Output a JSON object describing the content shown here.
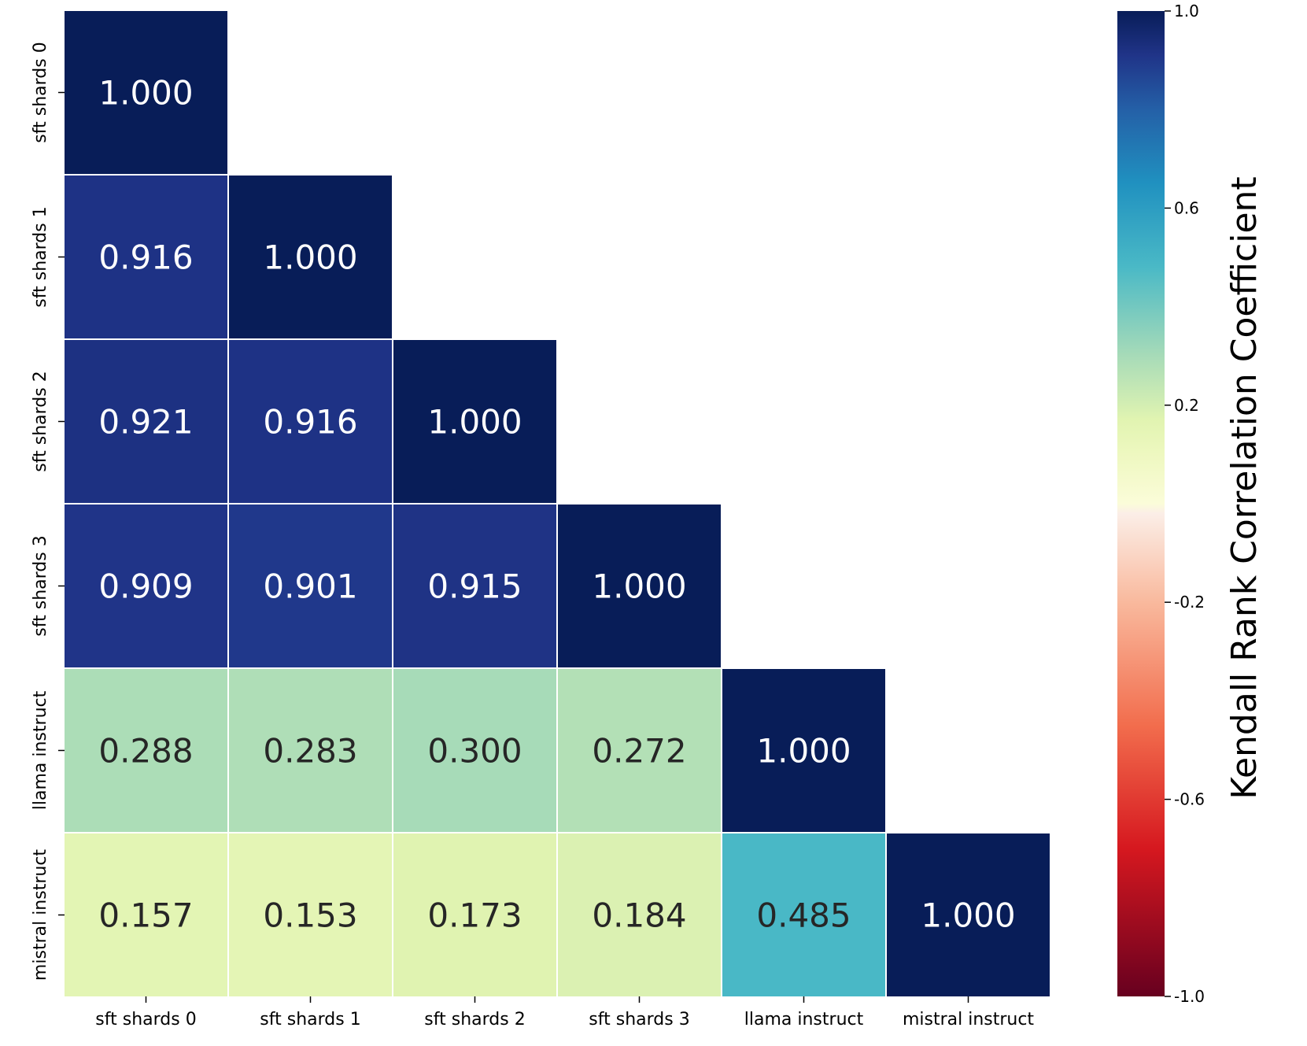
{
  "chart_data": {
    "type": "heatmap",
    "title": "",
    "xlabel": "",
    "ylabel": "",
    "categories": [
      "sft shards 0",
      "sft shards 1",
      "sft shards 2",
      "sft shards 3",
      "llama instruct",
      "mistral instruct"
    ],
    "values": [
      [
        1.0,
        null,
        null,
        null,
        null,
        null
      ],
      [
        0.916,
        1.0,
        null,
        null,
        null,
        null
      ],
      [
        0.921,
        0.916,
        1.0,
        null,
        null,
        null
      ],
      [
        0.909,
        0.901,
        0.915,
        1.0,
        null,
        null
      ],
      [
        0.288,
        0.283,
        0.3,
        0.272,
        1.0,
        null
      ],
      [
        0.157,
        0.153,
        0.173,
        0.184,
        0.485,
        1.0
      ]
    ],
    "mask": "upper-triangle",
    "colorbar": {
      "label": "Kendall Rank Correlation Coefficient",
      "range": [
        -1.0,
        1.0
      ],
      "ticks": [
        "1.0",
        "0.6",
        "0.2",
        "-0.2",
        "-0.6",
        "-1.0"
      ],
      "tick_values": [
        1.0,
        0.6,
        0.2,
        -0.2,
        -0.6,
        -1.0
      ],
      "stops": [
        {
          "v": -1.0,
          "color": "#67001f"
        },
        {
          "v": -0.7,
          "color": "#d6181f"
        },
        {
          "v": -0.45,
          "color": "#f26d4d"
        },
        {
          "v": -0.2,
          "color": "#f9b99d"
        },
        {
          "v": -0.02,
          "color": "#fbeee7"
        },
        {
          "v": 0.0,
          "color": "#fbfcd9"
        },
        {
          "v": 0.1,
          "color": "#eef8c0"
        },
        {
          "v": 0.17,
          "color": "#e1f4b1"
        },
        {
          "v": 0.3,
          "color": "#a7dbb8"
        },
        {
          "v": 0.48,
          "color": "#4ab9c6"
        },
        {
          "v": 0.65,
          "color": "#2091c0"
        },
        {
          "v": 0.8,
          "color": "#2460a7"
        },
        {
          "v": 0.91,
          "color": "#203488"
        },
        {
          "v": 1.0,
          "color": "#081d58"
        }
      ]
    },
    "annotation_format": "3-decimal",
    "dark_text_color": "#262626",
    "light_text_color": "#ffffff"
  }
}
